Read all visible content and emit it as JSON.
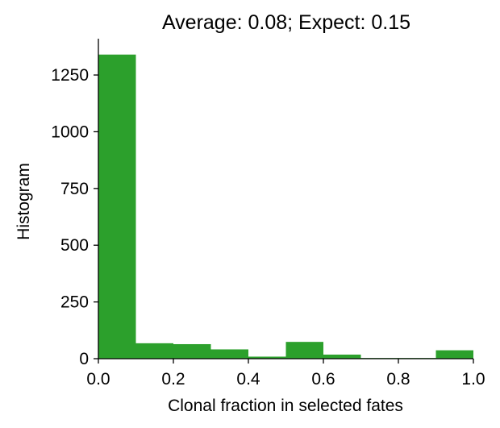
{
  "chart_data": {
    "type": "bar",
    "title": "Average: 0.08;   Expect: 0.15",
    "xlabel": "Clonal fraction in selected fates",
    "ylabel": "Histogram",
    "xlim": [
      0,
      1
    ],
    "ylim": [
      0,
      1410
    ],
    "xticks": [
      0.0,
      0.2,
      0.4,
      0.6,
      0.8,
      1.0
    ],
    "xtick_labels": [
      "0.0",
      "0.2",
      "0.4",
      "0.6",
      "0.8",
      "1.0"
    ],
    "yticks": [
      0,
      250,
      500,
      750,
      1000,
      1250
    ],
    "ytick_labels": [
      "0",
      "250",
      "500",
      "750",
      "1000",
      "1250"
    ],
    "bin_edges": [
      0.0,
      0.1,
      0.2,
      0.3,
      0.4,
      0.5,
      0.6,
      0.7,
      0.8,
      0.9,
      1.0
    ],
    "values": [
      1340,
      68,
      64,
      41,
      9,
      74,
      18,
      3,
      3,
      37
    ],
    "bar_color": "#2ca02c",
    "grid": false
  }
}
